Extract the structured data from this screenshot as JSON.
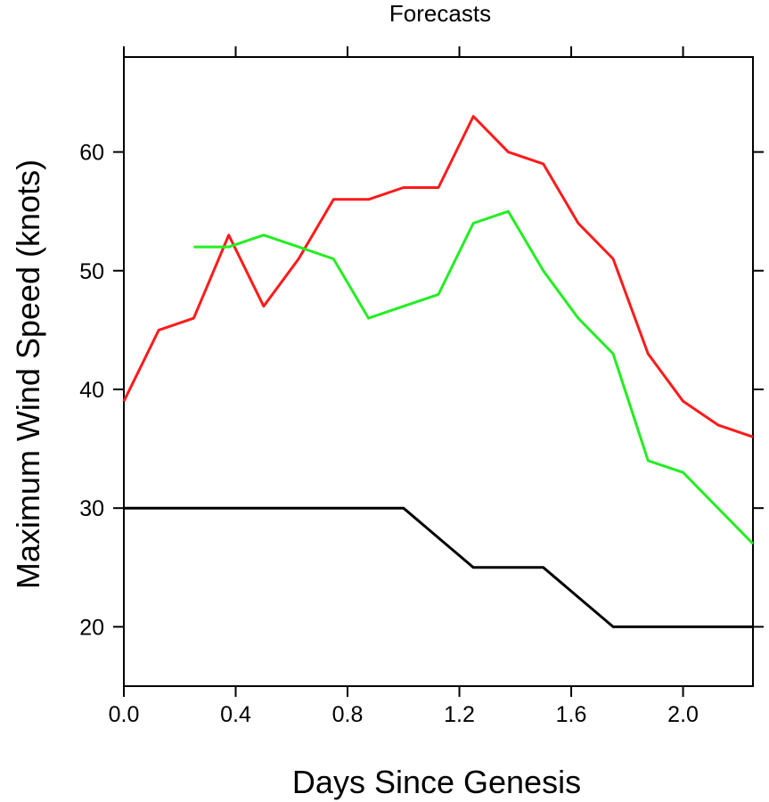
{
  "chart_data": {
    "type": "line",
    "title": "Forecasts",
    "xlabel": "Days Since Genesis",
    "ylabel": "Maximum Wind Speed (knots)",
    "xlim": [
      0.0,
      2.25
    ],
    "ylim": [
      15,
      68
    ],
    "xticks": [
      "0.0",
      "0.4",
      "0.8",
      "1.2",
      "1.6",
      "2.0"
    ],
    "yticks": [
      "20",
      "30",
      "40",
      "50",
      "60"
    ],
    "grid": false,
    "series": [
      {
        "color": "#ff1a1a",
        "x": [
          0.0,
          0.125,
          0.25,
          0.375,
          0.5,
          0.625,
          0.75,
          0.875,
          1.0,
          1.125,
          1.25,
          1.375,
          1.5,
          1.625,
          1.75,
          1.875,
          2.0,
          2.125,
          2.25
        ],
        "y": [
          39,
          45,
          46,
          53,
          47,
          51,
          56,
          56,
          57,
          57,
          63,
          60,
          59,
          54,
          51,
          43,
          39,
          37,
          36
        ]
      },
      {
        "color": "#22ee22",
        "x": [
          0.25,
          0.375,
          0.5,
          0.625,
          0.75,
          0.875,
          1.0,
          1.125,
          1.25,
          1.375,
          1.5,
          1.625,
          1.75,
          1.875,
          2.0,
          2.125,
          2.25
        ],
        "y": [
          52,
          52,
          53,
          52,
          51,
          46,
          47,
          48,
          54,
          55,
          50,
          46,
          43,
          34,
          33,
          30,
          27
        ]
      },
      {
        "color": "#000000",
        "x": [
          0.0,
          0.125,
          0.25,
          0.375,
          0.5,
          0.625,
          0.75,
          0.875,
          1.0,
          1.125,
          1.25,
          1.375,
          1.5,
          1.625,
          1.75,
          1.875,
          2.0,
          2.125,
          2.25
        ],
        "y": [
          30,
          30,
          30,
          30,
          30,
          30,
          30,
          30,
          30,
          27.5,
          25,
          25,
          25,
          22.5,
          20,
          20,
          20,
          20,
          20
        ]
      }
    ]
  }
}
